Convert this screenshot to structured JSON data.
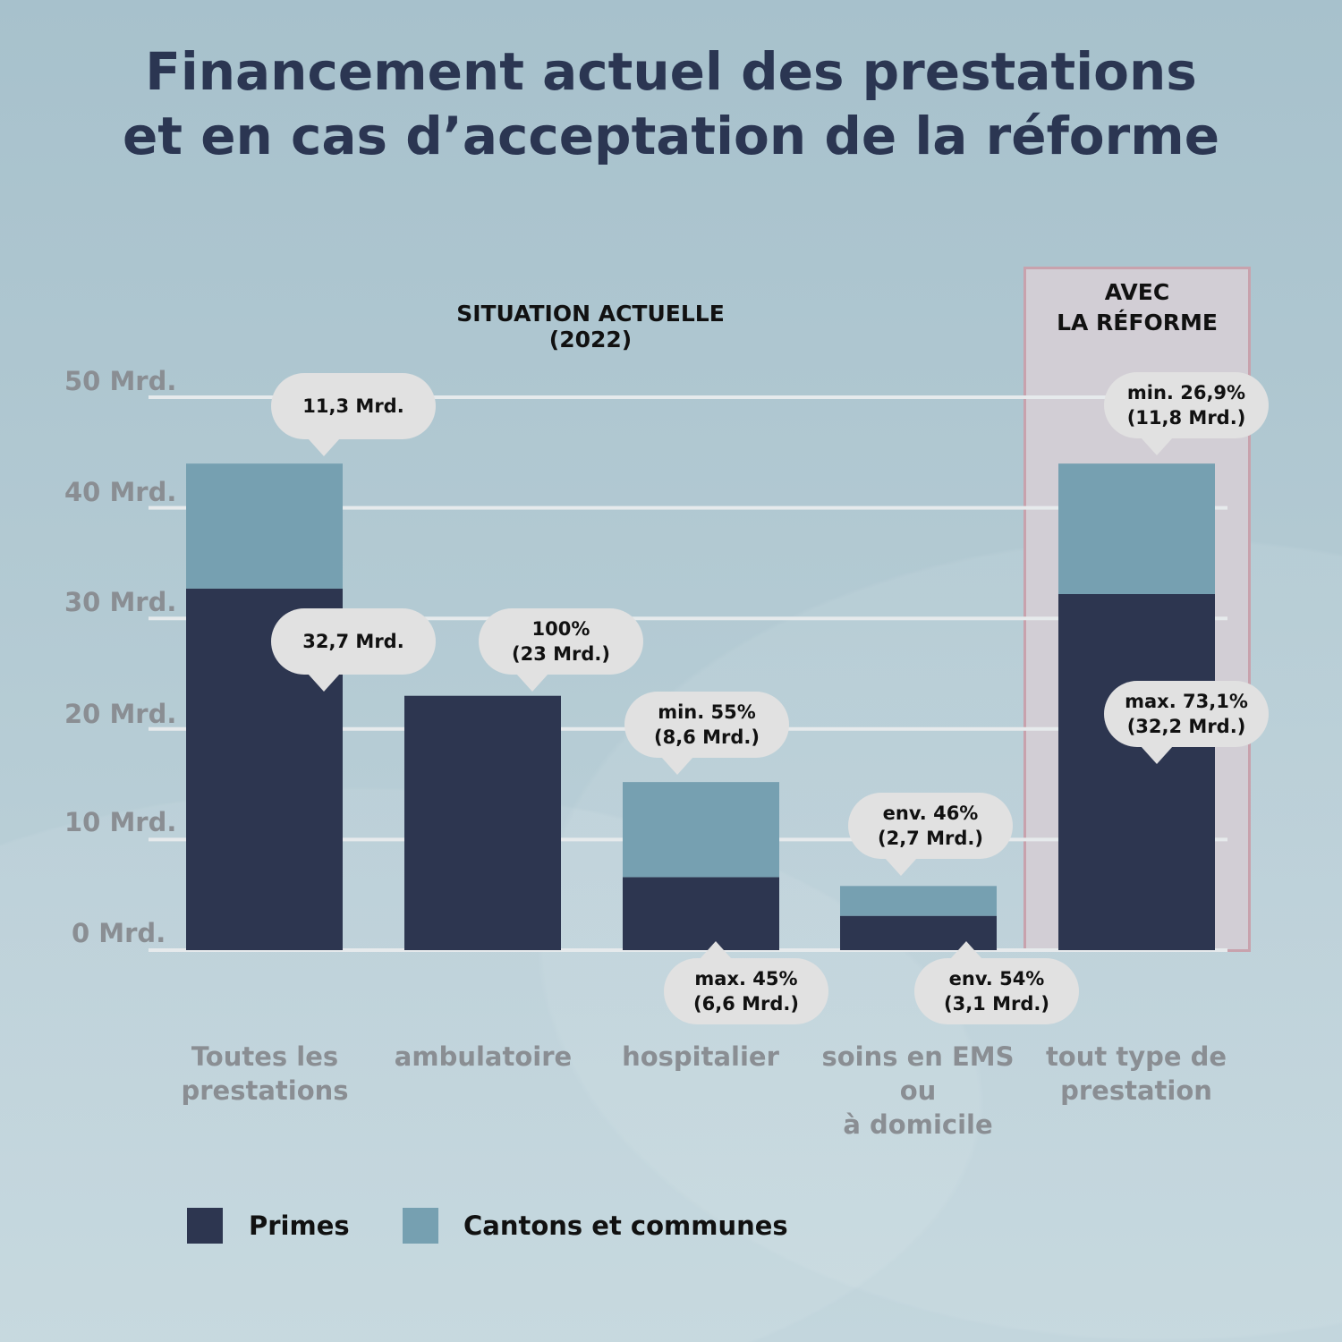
{
  "chart_data": {
    "type": "bar",
    "stacked": true,
    "title": "Financement actuel des prestations\net en cas d’acceptation de la réforme",
    "group_labels": {
      "current": "SITUATION ACTUELLE (2022)",
      "reform": "AVEC\nLA RÉFORME"
    },
    "categories": [
      "Toutes les\nprestations",
      "ambulatoire",
      "hospitalier",
      "soins en EMS ou\nà domicile",
      "tout type de\nprestation"
    ],
    "series": [
      {
        "name": "Primes",
        "color": "#2d3650",
        "values": [
          32.7,
          23,
          6.6,
          3.1,
          32.2
        ]
      },
      {
        "name": "Cantons et communes",
        "color": "#76a0b1",
        "values": [
          11.3,
          0,
          8.6,
          2.7,
          11.8
        ]
      }
    ],
    "yticks": [
      "0 Mrd.",
      "10 Mrd.",
      "20 Mrd.",
      "30 Mrd.",
      "40 Mrd.",
      "50 Mrd."
    ],
    "ylim": [
      0,
      50
    ],
    "unit": "Mrd.",
    "grid": true,
    "legend_position": "bottom",
    "annotations": [
      "11,3 Mrd.",
      "32,7 Mrd.",
      "100%\n(23 Mrd.)",
      "min. 55%\n(8,6 Mrd.)",
      "max. 45%\n(6,6 Mrd.)",
      "env. 46%\n(2,7 Mrd.)",
      "env. 54%\n(3,1 Mrd.)",
      "min. 26,9%\n(11,8 Mrd.)",
      "max. 73,1%\n(32,2 Mrd.)"
    ],
    "reform_highlight_color": "#c8a2ad"
  }
}
